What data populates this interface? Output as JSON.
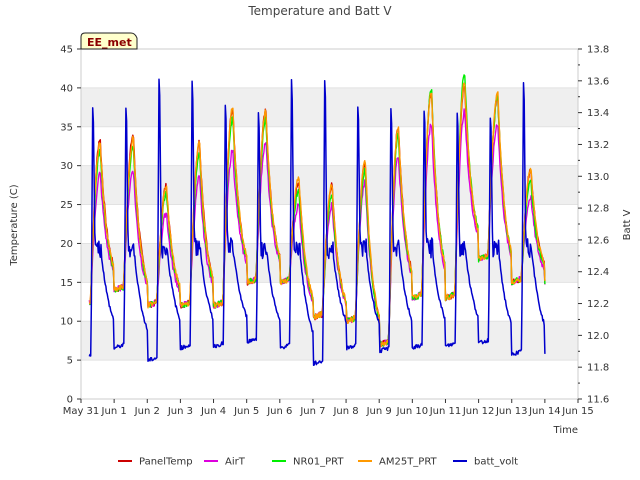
{
  "chart_data": {
    "type": "line",
    "title": "Temperature and Batt V",
    "xlabel": "Time",
    "ylabel": "Temperature (C)",
    "y2label": "Batt V",
    "badge": "EE_met",
    "x_tick_labels": [
      "May 31",
      "Jun 1",
      "Jun 2",
      "Jun 3",
      "Jun 4",
      "Jun 5",
      "Jun 6",
      "Jun 7",
      "Jun 8",
      "Jun 9",
      "Jun 10",
      "Jun 11",
      "Jun 12",
      "Jun 13",
      "Jun 14",
      "Jun 15"
    ],
    "xlim": [
      0,
      15
    ],
    "ylim": [
      0,
      45
    ],
    "y_ticks": [
      0,
      5,
      10,
      15,
      20,
      25,
      30,
      35,
      40,
      45
    ],
    "y2lim": [
      11.6,
      13.8
    ],
    "y2_ticks": [
      11.6,
      11.8,
      12.0,
      12.2,
      12.4,
      12.6,
      12.8,
      13.0,
      13.2,
      13.4,
      13.6,
      13.8
    ],
    "grid": "horizontal bands",
    "legend_position": "bottom",
    "daily_temp_min": [
      12,
      14,
      12,
      12,
      12,
      15,
      15,
      10.5,
      10,
      7,
      13,
      13,
      18,
      15
    ],
    "series": [
      {
        "name": "PanelTemp",
        "color": "#cc0000",
        "axis": "left",
        "daily_max": [
          33.5,
          34,
          27.5,
          33,
          37.5,
          37,
          28,
          27.5,
          30.5,
          35,
          39.5,
          40.5,
          39,
          29.5
        ]
      },
      {
        "name": "AirT",
        "color": "#dd00dd",
        "axis": "left",
        "daily_max": [
          29,
          29.5,
          24,
          28.5,
          32,
          33,
          25,
          25,
          28,
          31.5,
          35.5,
          37,
          35.5,
          26
        ]
      },
      {
        "name": "NR01_PRT",
        "color": "#00ee00",
        "axis": "left",
        "daily_max": [
          32,
          32.5,
          26.5,
          31.5,
          36,
          36,
          27,
          26.5,
          29.5,
          34,
          40,
          42,
          39,
          28
        ]
      },
      {
        "name": "AM25T_PRT",
        "color": "#ff9900",
        "axis": "left",
        "daily_max": [
          33,
          33.5,
          27.5,
          33,
          37.5,
          37,
          28.5,
          27.5,
          31,
          35,
          39.5,
          41,
          39.5,
          29.5
        ]
      },
      {
        "name": "batt_volt",
        "color": "#0000cc",
        "axis": "right",
        "daily_peak": [
          13.6,
          13.6,
          13.8,
          13.78,
          13.6,
          13.55,
          13.78,
          13.8,
          13.59,
          13.59,
          13.58,
          13.55,
          13.53,
          13.78
        ],
        "daily_min": [
          11.85,
          11.92,
          11.84,
          11.92,
          11.93,
          11.96,
          11.92,
          11.82,
          11.92,
          11.9,
          11.92,
          11.93,
          11.95,
          11.88
        ]
      }
    ]
  }
}
